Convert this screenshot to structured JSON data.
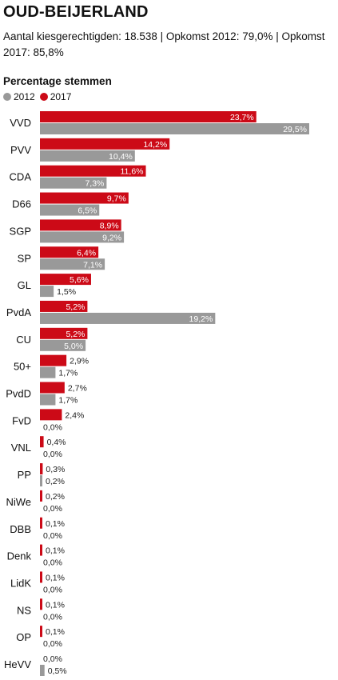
{
  "header": {
    "title": "OUD-BEIJERLAND",
    "subtitle": "Aantal kiesgerechtigden: 18.538 | Opkomst 2012: 79,0% | Opkomst 2017: 85,8%"
  },
  "colors": {
    "y2017": "#cc0a17",
    "y2012": "#999999"
  },
  "chart_data": {
    "type": "bar",
    "orientation": "horizontal",
    "title": "Percentage stemmen",
    "legend": [
      "2012",
      "2017"
    ],
    "legend_position": "top-left",
    "categories": [
      "VVD",
      "PVV",
      "CDA",
      "D66",
      "SGP",
      "SP",
      "GL",
      "PvdA",
      "CU",
      "50+",
      "PvdD",
      "FvD",
      "VNL",
      "PP",
      "NiWe",
      "DBB",
      "Denk",
      "LidK",
      "NS",
      "OP",
      "HeVV"
    ],
    "series": [
      {
        "name": "2017",
        "color": "#cc0a17",
        "values": [
          23.7,
          14.2,
          11.6,
          9.7,
          8.9,
          6.4,
          5.6,
          5.2,
          5.2,
          2.9,
          2.7,
          2.4,
          0.4,
          0.3,
          0.2,
          0.1,
          0.1,
          0.1,
          0.1,
          0.1,
          0.0
        ],
        "labels": [
          "23,7%",
          "14,2%",
          "11,6%",
          "9,7%",
          "8,9%",
          "6,4%",
          "5,6%",
          "5,2%",
          "5,2%",
          "2,9%",
          "2,7%",
          "2,4%",
          "0,4%",
          "0,3%",
          "0,2%",
          "0,1%",
          "0,1%",
          "0,1%",
          "0,1%",
          "0,1%",
          "0,0%"
        ]
      },
      {
        "name": "2012",
        "color": "#999999",
        "values": [
          29.5,
          10.4,
          7.3,
          6.5,
          9.2,
          7.1,
          1.5,
          19.2,
          5.0,
          1.7,
          1.7,
          0.0,
          0.0,
          0.2,
          0.0,
          0.0,
          0.0,
          0.0,
          0.0,
          0.0,
          0.5
        ],
        "labels": [
          "29,5%",
          "10,4%",
          "7,3%",
          "6,5%",
          "9,2%",
          "7,1%",
          "1,5%",
          "19,2%",
          "5,0%",
          "1,7%",
          "1,7%",
          "0,0%",
          "0,0%",
          "0,2%",
          "0,0%",
          "0,0%",
          "0,0%",
          "0,0%",
          "0,0%",
          "0,0%",
          "0,5%"
        ]
      }
    ],
    "xlim": [
      0,
      29.5
    ],
    "grid": false
  }
}
